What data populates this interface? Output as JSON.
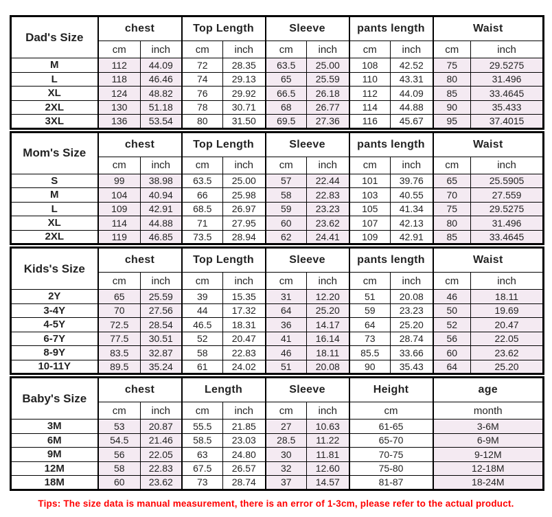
{
  "colors": {
    "row_shade": "#f4eaf2",
    "tips_red": "#ff0000",
    "border": "#000000"
  },
  "tips": {
    "text": "Tips: The size data is manual measurement, there is an error of 1-3cm, please refer to the actual product."
  },
  "chart_data": [
    {
      "type": "table",
      "title": "Dad's Size",
      "groups": [
        {
          "label": "chest",
          "units": [
            "cm",
            "inch"
          ],
          "shaded": true
        },
        {
          "label": "Top Length",
          "units": [
            "cm",
            "inch"
          ],
          "shaded": false
        },
        {
          "label": "Sleeve",
          "units": [
            "cm",
            "inch"
          ],
          "shaded": true
        },
        {
          "label": "pants length",
          "units": [
            "cm",
            "inch"
          ],
          "shaded": false
        },
        {
          "label": "Waist",
          "units": [
            "cm",
            "inch"
          ],
          "shaded": true
        }
      ],
      "rows": [
        {
          "label": "M",
          "values": [
            "112",
            "44.09",
            "72",
            "28.35",
            "63.5",
            "25.00",
            "108",
            "42.52",
            "75",
            "29.5275"
          ]
        },
        {
          "label": "L",
          "values": [
            "118",
            "46.46",
            "74",
            "29.13",
            "65",
            "25.59",
            "110",
            "43.31",
            "80",
            "31.496"
          ]
        },
        {
          "label": "XL",
          "values": [
            "124",
            "48.82",
            "76",
            "29.92",
            "66.5",
            "26.18",
            "112",
            "44.09",
            "85",
            "33.4645"
          ]
        },
        {
          "label": "2XL",
          "values": [
            "130",
            "51.18",
            "78",
            "30.71",
            "68",
            "26.77",
            "114",
            "44.88",
            "90",
            "35.433"
          ]
        },
        {
          "label": "3XL",
          "values": [
            "136",
            "53.54",
            "80",
            "31.50",
            "69.5",
            "27.36",
            "116",
            "45.67",
            "95",
            "37.4015"
          ]
        }
      ]
    },
    {
      "type": "table",
      "title": "Mom's Size",
      "groups": [
        {
          "label": "chest",
          "units": [
            "cm",
            "inch"
          ],
          "shaded": true
        },
        {
          "label": "Top Length",
          "units": [
            "cm",
            "inch"
          ],
          "shaded": false
        },
        {
          "label": "Sleeve",
          "units": [
            "cm",
            "inch"
          ],
          "shaded": true
        },
        {
          "label": "pants length",
          "units": [
            "cm",
            "inch"
          ],
          "shaded": false
        },
        {
          "label": "Waist",
          "units": [
            "cm",
            "inch"
          ],
          "shaded": true
        }
      ],
      "rows": [
        {
          "label": "S",
          "values": [
            "99",
            "38.98",
            "63.5",
            "25.00",
            "57",
            "22.44",
            "101",
            "39.76",
            "65",
            "25.5905"
          ]
        },
        {
          "label": "M",
          "values": [
            "104",
            "40.94",
            "66",
            "25.98",
            "58",
            "22.83",
            "103",
            "40.55",
            "70",
            "27.559"
          ]
        },
        {
          "label": "L",
          "values": [
            "109",
            "42.91",
            "68.5",
            "26.97",
            "59",
            "23.23",
            "105",
            "41.34",
            "75",
            "29.5275"
          ]
        },
        {
          "label": "XL",
          "values": [
            "114",
            "44.88",
            "71",
            "27.95",
            "60",
            "23.62",
            "107",
            "42.13",
            "80",
            "31.496"
          ]
        },
        {
          "label": "2XL",
          "values": [
            "119",
            "46.85",
            "73.5",
            "28.94",
            "62",
            "24.41",
            "109",
            "42.91",
            "85",
            "33.4645"
          ]
        }
      ]
    },
    {
      "type": "table",
      "title": "Kids's Size",
      "groups": [
        {
          "label": "chest",
          "units": [
            "cm",
            "inch"
          ],
          "shaded": true
        },
        {
          "label": "Top Length",
          "units": [
            "cm",
            "inch"
          ],
          "shaded": false
        },
        {
          "label": "Sleeve",
          "units": [
            "cm",
            "inch"
          ],
          "shaded": true
        },
        {
          "label": "pants length",
          "units": [
            "cm",
            "inch"
          ],
          "shaded": false
        },
        {
          "label": "Waist",
          "units": [
            "cm",
            "inch"
          ],
          "shaded": true
        }
      ],
      "rows": [
        {
          "label": "2Y",
          "values": [
            "65",
            "25.59",
            "39",
            "15.35",
            "31",
            "12.20",
            "51",
            "20.08",
            "46",
            "18.11"
          ]
        },
        {
          "label": "3-4Y",
          "values": [
            "70",
            "27.56",
            "44",
            "17.32",
            "64",
            "25.20",
            "59",
            "23.23",
            "50",
            "19.69"
          ]
        },
        {
          "label": "4-5Y",
          "values": [
            "72.5",
            "28.54",
            "46.5",
            "18.31",
            "36",
            "14.17",
            "64",
            "25.20",
            "52",
            "20.47"
          ]
        },
        {
          "label": "6-7Y",
          "values": [
            "77.5",
            "30.51",
            "52",
            "20.47",
            "41",
            "16.14",
            "73",
            "28.74",
            "56",
            "22.05"
          ]
        },
        {
          "label": "8-9Y",
          "values": [
            "83.5",
            "32.87",
            "58",
            "22.83",
            "46",
            "18.11",
            "85.5",
            "33.66",
            "60",
            "23.62"
          ]
        },
        {
          "label": "10-11Y",
          "values": [
            "89.5",
            "35.24",
            "61",
            "24.02",
            "51",
            "20.08",
            "90",
            "35.43",
            "64",
            "25.20"
          ]
        }
      ]
    },
    {
      "type": "table",
      "title": "Baby's Size",
      "groups": [
        {
          "label": "chest",
          "units": [
            "cm",
            "inch"
          ],
          "shaded": true
        },
        {
          "label": "Length",
          "units": [
            "cm",
            "inch"
          ],
          "shaded": false
        },
        {
          "label": "Sleeve",
          "units": [
            "cm",
            "inch"
          ],
          "shaded": true
        },
        {
          "label": "Height",
          "units": [
            "cm"
          ],
          "shaded": false
        },
        {
          "label": "age",
          "units": [
            "month"
          ],
          "shaded": true
        }
      ],
      "rows": [
        {
          "label": "3M",
          "values": [
            "53",
            "20.87",
            "55.5",
            "21.85",
            "27",
            "10.63",
            "61-65",
            "3-6M"
          ]
        },
        {
          "label": "6M",
          "values": [
            "54.5",
            "21.46",
            "58.5",
            "23.03",
            "28.5",
            "11.22",
            "65-70",
            "6-9M"
          ]
        },
        {
          "label": "9M",
          "values": [
            "56",
            "22.05",
            "63",
            "24.80",
            "30",
            "11.81",
            "70-75",
            "9-12M"
          ]
        },
        {
          "label": "12M",
          "values": [
            "58",
            "22.83",
            "67.5",
            "26.57",
            "32",
            "12.60",
            "75-80",
            "12-18M"
          ]
        },
        {
          "label": "18M",
          "values": [
            "60",
            "23.62",
            "73",
            "28.74",
            "37",
            "14.57",
            "81-87",
            "18-24M"
          ]
        }
      ]
    }
  ]
}
